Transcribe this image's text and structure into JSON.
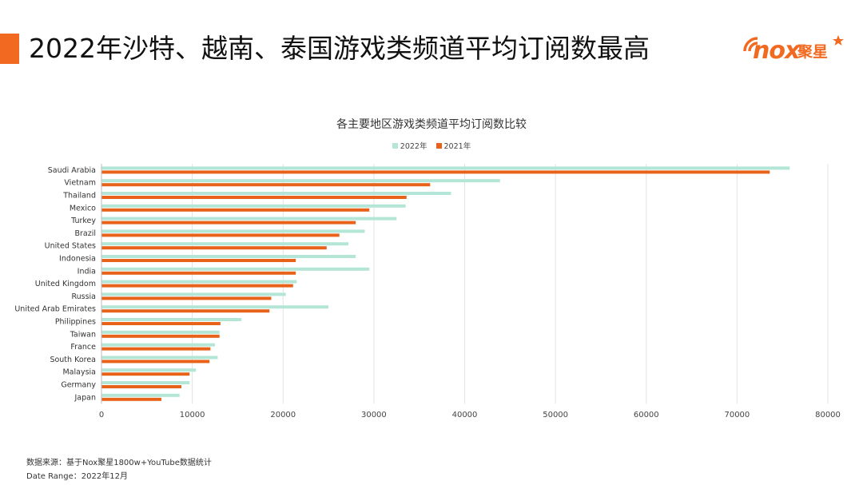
{
  "header": {
    "title": "2022年沙特、越南、泰国游戏类频道平均订阅数最高",
    "logo_text": "nox",
    "logo_cn": "聚星",
    "accent_color": "#f26a21"
  },
  "footer": {
    "source": "数据来源：基于Nox聚星1800w+YouTube数据统计",
    "date_range": "Date Range：2022年12月"
  },
  "chart_data": {
    "type": "bar",
    "orientation": "horizontal",
    "title": "各主要地区游戏类频道平均订阅数比较",
    "categories": [
      "Saudi Arabia",
      "Vietnam",
      "Thailand",
      "Mexico",
      "Turkey",
      "Brazil",
      "United States",
      "Indonesia",
      "India",
      "United Kingdom",
      "Russia",
      "United Arab Emirates",
      "Philippines",
      "Taiwan",
      "France",
      "South Korea",
      "Malaysia",
      "Germany",
      "Japan"
    ],
    "series": [
      {
        "name": "2022年",
        "color": "#b3e6d6",
        "values": [
          75800,
          43900,
          38500,
          33500,
          32500,
          29000,
          27200,
          28000,
          29500,
          21500,
          20300,
          25000,
          15400,
          13000,
          12500,
          12800,
          10400,
          9700,
          8600
        ]
      },
      {
        "name": "2021年",
        "color": "#e8621a",
        "values": [
          73600,
          36200,
          33600,
          29500,
          28000,
          26200,
          24800,
          21400,
          21400,
          21100,
          18700,
          18500,
          13100,
          13000,
          12000,
          11900,
          9700,
          8800,
          6600
        ]
      }
    ],
    "xlim": [
      0,
      80000
    ],
    "xticks": [
      0,
      10000,
      20000,
      30000,
      40000,
      50000,
      60000,
      70000,
      80000
    ],
    "grid": true,
    "legend_position": "top"
  }
}
